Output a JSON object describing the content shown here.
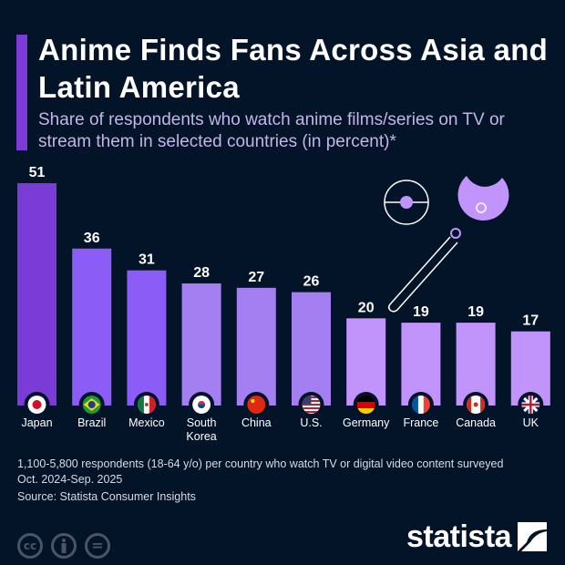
{
  "header": {
    "title": "Anime Finds Fans Across Asia and Latin America",
    "subtitle": "Share of respondents who watch anime films/series on TV or stream them in selected countries (in percent)*"
  },
  "chart_data": {
    "type": "bar",
    "categories": [
      "Japan",
      "Brazil",
      "Mexico",
      "South Korea",
      "China",
      "U.S.",
      "Germany",
      "France",
      "Canada",
      "UK"
    ],
    "values": [
      51,
      36,
      31,
      28,
      27,
      26,
      20,
      19,
      19,
      17
    ],
    "colors": [
      "#7b3bd6",
      "#8b5cf6",
      "#8b5cf6",
      "#a47ff2",
      "#a47ff2",
      "#a47ff2",
      "#c194fb",
      "#c194fb",
      "#c194fb",
      "#c194fb"
    ],
    "flags": [
      "japan-flag",
      "brazil-flag",
      "mexico-flag",
      "south-korea-flag",
      "china-flag",
      "us-flag",
      "germany-flag",
      "france-flag",
      "canada-flag",
      "uk-flag"
    ],
    "ylim": [
      0,
      55
    ],
    "grid": false,
    "data_labels": true
  },
  "footer": {
    "note_line1": "1,100-5,800 respondents (18-64 y/o) per country who watch TV or digital video content surveyed",
    "note_line2": "Oct. 2024-Sep. 2025",
    "source": "Source: Statista Consumer Insights",
    "brand": "statista",
    "cc_label": "cc",
    "eq_label": "="
  }
}
